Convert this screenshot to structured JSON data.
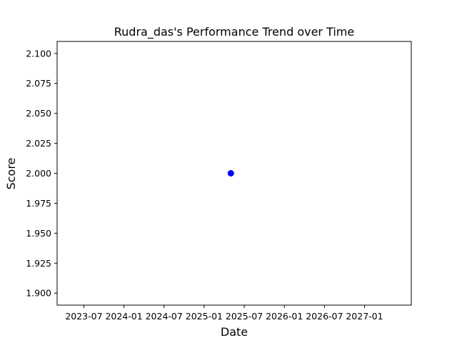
{
  "chart_data": {
    "type": "scatter",
    "title": "Rudra_das's Performance Trend over Time",
    "xlabel": "Date",
    "ylabel": "Score",
    "x_ticks": [
      "2023-07",
      "2024-01",
      "2024-07",
      "2025-01",
      "2025-07",
      "2026-01",
      "2026-07",
      "2027-01"
    ],
    "y_ticks": [
      "1.900",
      "1.925",
      "1.950",
      "1.975",
      "2.000",
      "2.025",
      "2.050",
      "2.075",
      "2.100"
    ],
    "x_range": [
      "2023-03",
      "2027-08"
    ],
    "ylim": [
      1.89,
      2.11
    ],
    "grid": false,
    "series": [
      {
        "color": "#0000ff",
        "points": [
          {
            "x": "2025-05",
            "y": 2.0
          }
        ]
      }
    ]
  }
}
